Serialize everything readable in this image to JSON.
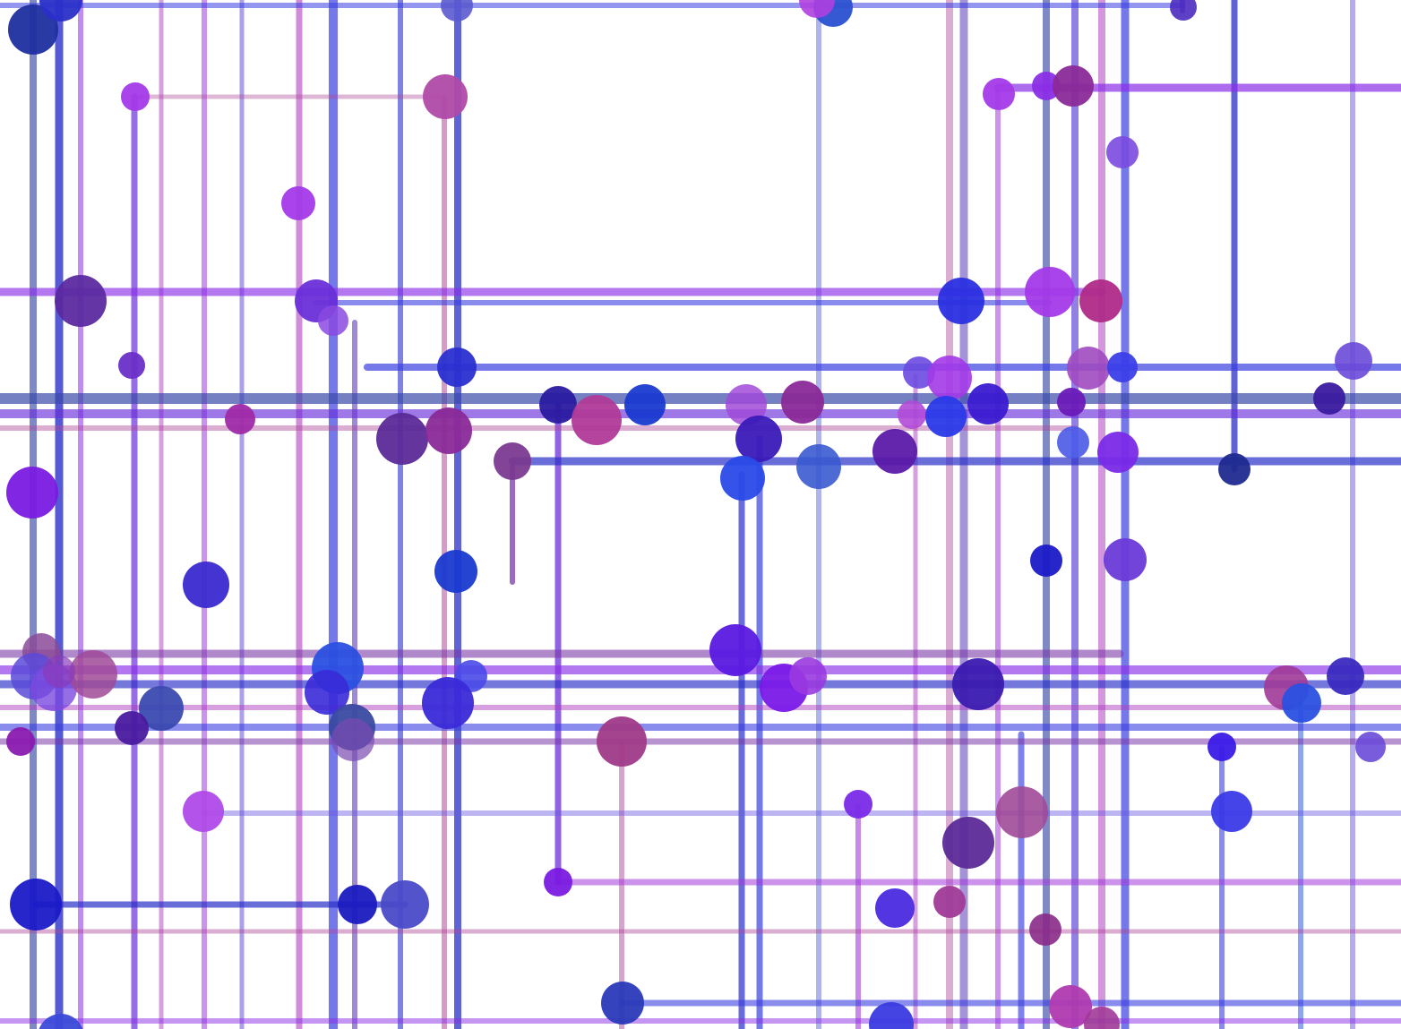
{
  "artwork": {
    "background_color": "#ffffff",
    "palette": [
      "#2a2fc8",
      "#3b3fe0",
      "#4b2bd0",
      "#6a2fd8",
      "#8a2ee6",
      "#a33ad8",
      "#b03fc0",
      "#b04a98",
      "#7c3aa8",
      "#1f1fb8",
      "#2e5ae8",
      "#5b3ab8"
    ]
  }
}
